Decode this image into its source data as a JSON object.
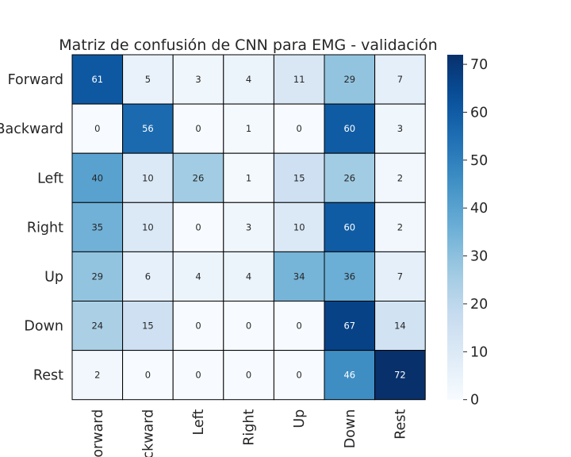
{
  "chart_data": {
    "type": "heatmap",
    "title": "Matriz de confusión de CNN para EMG - validación",
    "xlabel": "",
    "ylabel": "",
    "row_labels": [
      "Forward",
      "Backward",
      "Left",
      "Right",
      "Up",
      "Down",
      "Rest"
    ],
    "col_labels": [
      "Forward",
      "Backward",
      "Left",
      "Right",
      "Up",
      "Down",
      "Rest"
    ],
    "values": [
      [
        61,
        5,
        3,
        4,
        11,
        29,
        7
      ],
      [
        0,
        56,
        0,
        1,
        0,
        60,
        3
      ],
      [
        40,
        10,
        26,
        1,
        15,
        26,
        2
      ],
      [
        35,
        10,
        0,
        3,
        10,
        60,
        2
      ],
      [
        29,
        6,
        4,
        4,
        34,
        36,
        7
      ],
      [
        24,
        15,
        0,
        0,
        0,
        67,
        14
      ],
      [
        2,
        0,
        0,
        0,
        0,
        46,
        72
      ]
    ],
    "colormap": "Blues",
    "vmin": 0,
    "vmax": 72,
    "colorbar_ticks": [
      0,
      10,
      20,
      30,
      40,
      50,
      60,
      70
    ],
    "colorbar_tick_labels": [
      "0",
      "10",
      "20",
      "30",
      "40",
      "50",
      "60",
      "70"
    ],
    "cell_border_color": "#000000",
    "annotation_dark_text_color": "#262626",
    "annotation_light_text_color": "#ffffff"
  }
}
